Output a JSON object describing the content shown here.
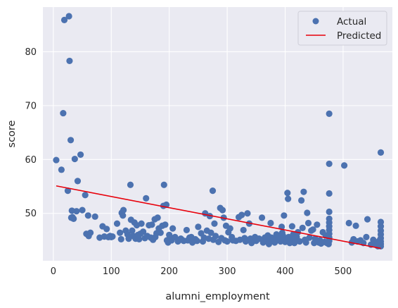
{
  "chart_data": {
    "type": "scatter",
    "title": "",
    "xlabel": "alumni_employment",
    "ylabel": "score",
    "xlim": [
      -18,
      585
    ],
    "ylim": [
      41.2,
      88.3
    ],
    "xticks": [
      0,
      100,
      200,
      300,
      400,
      500
    ],
    "yticks": [
      50,
      60,
      70,
      80
    ],
    "grid": true,
    "legend_position": "top-right",
    "colors": {
      "background": "#eaeaf2",
      "grid": "#ffffff",
      "points": "#4c72b0",
      "line": "#e8000b"
    },
    "series": [
      {
        "name": "Actual",
        "kind": "scatter",
        "points": [
          [
            5,
            59.9
          ],
          [
            14,
            58.1
          ],
          [
            17,
            68.6
          ],
          [
            19,
            85.9
          ],
          [
            25,
            54.2
          ],
          [
            27,
            86.6
          ],
          [
            28,
            78.3
          ],
          [
            30,
            63.6
          ],
          [
            31,
            49.2
          ],
          [
            32,
            50.5
          ],
          [
            33,
            49.3
          ],
          [
            35,
            49.0
          ],
          [
            37,
            60.1
          ],
          [
            40,
            50.4
          ],
          [
            42,
            56.0
          ],
          [
            47,
            60.9
          ],
          [
            50,
            50.6
          ],
          [
            55,
            53.4
          ],
          [
            57,
            46.2
          ],
          [
            60,
            49.6
          ],
          [
            61,
            45.8
          ],
          [
            64,
            46.4
          ],
          [
            72,
            49.4
          ],
          [
            80,
            45.5
          ],
          [
            85,
            47.6
          ],
          [
            88,
            45.7
          ],
          [
            92,
            47.1
          ],
          [
            95,
            45.6
          ],
          [
            98,
            45.8
          ],
          [
            100,
            45.6
          ],
          [
            102,
            45.7
          ],
          [
            110,
            48.1
          ],
          [
            115,
            46.4
          ],
          [
            117,
            45.2
          ],
          [
            118,
            50.1
          ],
          [
            120,
            49.6
          ],
          [
            121,
            50.6
          ],
          [
            125,
            46.8
          ],
          [
            128,
            46.1
          ],
          [
            130,
            45.3
          ],
          [
            131,
            45.7
          ],
          [
            133,
            55.3
          ],
          [
            134,
            48.8
          ],
          [
            136,
            46.8
          ],
          [
            138,
            45.8
          ],
          [
            140,
            48.3
          ],
          [
            142,
            45.3
          ],
          [
            144,
            47.8
          ],
          [
            146,
            46.0
          ],
          [
            148,
            45.2
          ],
          [
            150,
            46.2
          ],
          [
            152,
            48.1
          ],
          [
            155,
            46.6
          ],
          [
            158,
            45.4
          ],
          [
            160,
            52.8
          ],
          [
            162,
            45.8
          ],
          [
            165,
            47.8
          ],
          [
            168,
            45.5
          ],
          [
            170,
            47.9
          ],
          [
            172,
            45.1
          ],
          [
            175,
            48.9
          ],
          [
            176,
            45.6
          ],
          [
            178,
            46.3
          ],
          [
            180,
            49.2
          ],
          [
            182,
            47.2
          ],
          [
            185,
            46.4
          ],
          [
            188,
            47.7
          ],
          [
            190,
            51.4
          ],
          [
            191,
            55.3
          ],
          [
            193,
            47.9
          ],
          [
            195,
            51.6
          ],
          [
            196,
            45.0
          ],
          [
            198,
            44.6
          ],
          [
            200,
            46.0
          ],
          [
            202,
            45.5
          ],
          [
            204,
            45.0
          ],
          [
            206,
            47.2
          ],
          [
            210,
            45.6
          ],
          [
            215,
            44.8
          ],
          [
            220,
            45.3
          ],
          [
            222,
            45.1
          ],
          [
            225,
            44.9
          ],
          [
            230,
            46.9
          ],
          [
            232,
            45.0
          ],
          [
            235,
            45.5
          ],
          [
            238,
            45.6
          ],
          [
            240,
            44.6
          ],
          [
            245,
            45.2
          ],
          [
            248,
            44.9
          ],
          [
            250,
            47.5
          ],
          [
            255,
            46.3
          ],
          [
            258,
            44.8
          ],
          [
            260,
            45.5
          ],
          [
            262,
            50.0
          ],
          [
            265,
            46.8
          ],
          [
            268,
            45.3
          ],
          [
            270,
            49.5
          ],
          [
            272,
            46.4
          ],
          [
            275,
            54.2
          ],
          [
            276,
            45.1
          ],
          [
            278,
            48.1
          ],
          [
            280,
            45.8
          ],
          [
            285,
            44.7
          ],
          [
            288,
            51.0
          ],
          [
            290,
            45.4
          ],
          [
            292,
            50.6
          ],
          [
            294,
            49.2
          ],
          [
            296,
            45.0
          ],
          [
            298,
            47.7
          ],
          [
            300,
            44.8
          ],
          [
            302,
            46.5
          ],
          [
            305,
            47.2
          ],
          [
            308,
            45.6
          ],
          [
            310,
            45.0
          ],
          [
            315,
            44.9
          ],
          [
            320,
            49.3
          ],
          [
            322,
            45.1
          ],
          [
            325,
            49.7
          ],
          [
            328,
            46.9
          ],
          [
            330,
            45.4
          ],
          [
            332,
            44.8
          ],
          [
            335,
            50.0
          ],
          [
            338,
            48.1
          ],
          [
            340,
            45.3
          ],
          [
            342,
            44.5
          ],
          [
            345,
            45.1
          ],
          [
            348,
            45.6
          ],
          [
            350,
            44.9
          ],
          [
            355,
            45.3
          ],
          [
            360,
            49.2
          ],
          [
            362,
            44.6
          ],
          [
            365,
            45.5
          ],
          [
            368,
            44.8
          ],
          [
            370,
            45.9
          ],
          [
            372,
            44.3
          ],
          [
            375,
            48.2
          ],
          [
            376,
            45.5
          ],
          [
            378,
            44.9
          ],
          [
            380,
            45.4
          ],
          [
            382,
            44.6
          ],
          [
            385,
            46.1
          ],
          [
            388,
            45.3
          ],
          [
            390,
            45.8
          ],
          [
            392,
            44.8
          ],
          [
            394,
            47.5
          ],
          [
            395,
            46.4
          ],
          [
            396,
            45.9
          ],
          [
            397,
            45.3
          ],
          [
            398,
            49.6
          ],
          [
            400,
            44.7
          ],
          [
            402,
            45.1
          ],
          [
            404,
            53.8
          ],
          [
            405,
            52.7
          ],
          [
            406,
            45.6
          ],
          [
            408,
            44.5
          ],
          [
            410,
            45.2
          ],
          [
            412,
            47.6
          ],
          [
            414,
            46.1
          ],
          [
            416,
            44.5
          ],
          [
            418,
            44.9
          ],
          [
            420,
            45.6
          ],
          [
            422,
            46.5
          ],
          [
            425,
            44.8
          ],
          [
            428,
            52.4
          ],
          [
            430,
            47.3
          ],
          [
            432,
            54.0
          ],
          [
            434,
            45.1
          ],
          [
            436,
            44.6
          ],
          [
            438,
            50.1
          ],
          [
            440,
            48.2
          ],
          [
            442,
            45.5
          ],
          [
            445,
            46.8
          ],
          [
            448,
            47.0
          ],
          [
            450,
            44.5
          ],
          [
            452,
            45.3
          ],
          [
            455,
            47.9
          ],
          [
            458,
            44.6
          ],
          [
            460,
            45.0
          ],
          [
            462,
            44.4
          ],
          [
            465,
            46.5
          ],
          [
            468,
            44.7
          ],
          [
            470,
            45.9
          ],
          [
            472,
            44.5
          ],
          [
            474,
            45.8
          ],
          [
            475,
            44.3
          ],
          [
            476,
            68.5
          ],
          [
            476,
            59.2
          ],
          [
            476,
            53.7
          ],
          [
            476,
            50.3
          ],
          [
            476,
            49.0
          ],
          [
            476,
            48.3
          ],
          [
            476,
            47.6
          ],
          [
            476,
            46.9
          ],
          [
            476,
            46.2
          ],
          [
            476,
            45.5
          ],
          [
            476,
            44.9
          ],
          [
            502,
            58.9
          ],
          [
            510,
            48.2
          ],
          [
            515,
            44.6
          ],
          [
            518,
            45.2
          ],
          [
            522,
            47.7
          ],
          [
            525,
            44.8
          ],
          [
            530,
            45.0
          ],
          [
            535,
            44.5
          ],
          [
            540,
            45.6
          ],
          [
            542,
            48.9
          ],
          [
            548,
            44.2
          ],
          [
            552,
            45.1
          ],
          [
            555,
            44.7
          ],
          [
            558,
            44.1
          ],
          [
            560,
            43.9
          ],
          [
            562,
            44.4
          ],
          [
            563,
            45.0
          ],
          [
            564,
            44.6
          ],
          [
            565,
            61.3
          ],
          [
            565,
            48.4
          ],
          [
            565,
            47.6
          ],
          [
            565,
            46.8
          ],
          [
            565,
            46.1
          ],
          [
            565,
            45.4
          ],
          [
            565,
            44.8
          ],
          [
            565,
            44.3
          ],
          [
            565,
            43.9
          ]
        ]
      },
      {
        "name": "Predicted",
        "kind": "line",
        "points": [
          [
            5,
            55.1
          ],
          [
            565,
            43.5
          ]
        ]
      }
    ]
  }
}
